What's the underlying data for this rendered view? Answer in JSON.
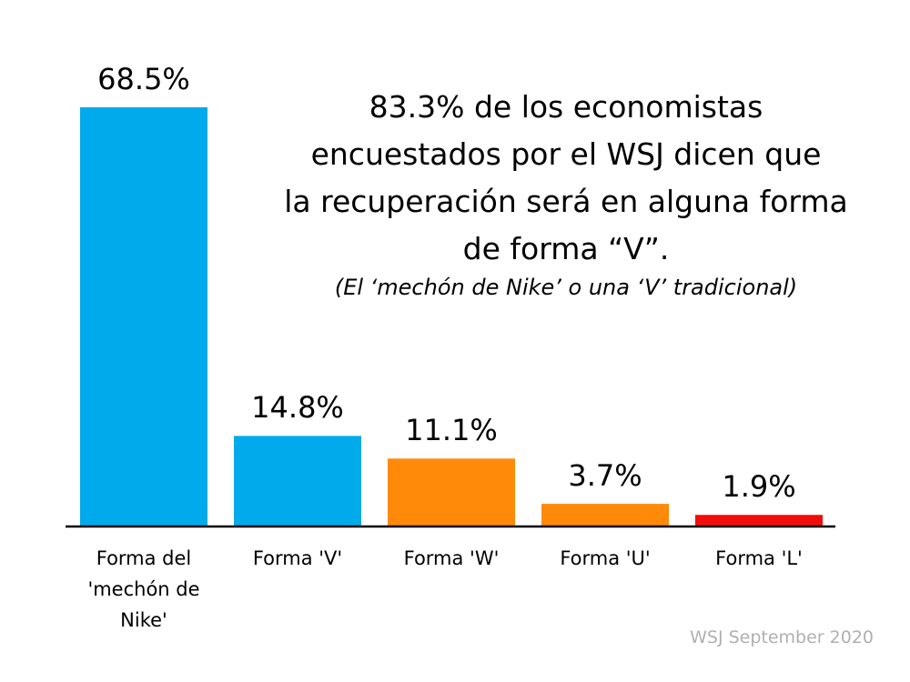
{
  "chart_data": {
    "type": "bar",
    "annotation": "83.3% de los economistas\nencuestados por el WSJ dicen que\nla recuperación será en alguna forma\nde forma “V”.",
    "annotation_note": "(El ‘mechón de Nike’ o una ‘V’ tradicional)",
    "categories": [
      "Forma del\n'mechón de\nNike'",
      "Forma 'V'",
      "Forma 'W'",
      "Forma 'U'",
      "Forma 'L'"
    ],
    "values": [
      68.5,
      14.8,
      11.1,
      3.7,
      1.9
    ],
    "value_labels": [
      "68.5%",
      "14.8%",
      "11.1%",
      "3.7%",
      "1.9%"
    ],
    "colors": [
      "#00aaeb",
      "#00aaeb",
      "#ff8a0a",
      "#ff8a0a",
      "#f20d0d"
    ],
    "source": "WSJ September 2020"
  }
}
